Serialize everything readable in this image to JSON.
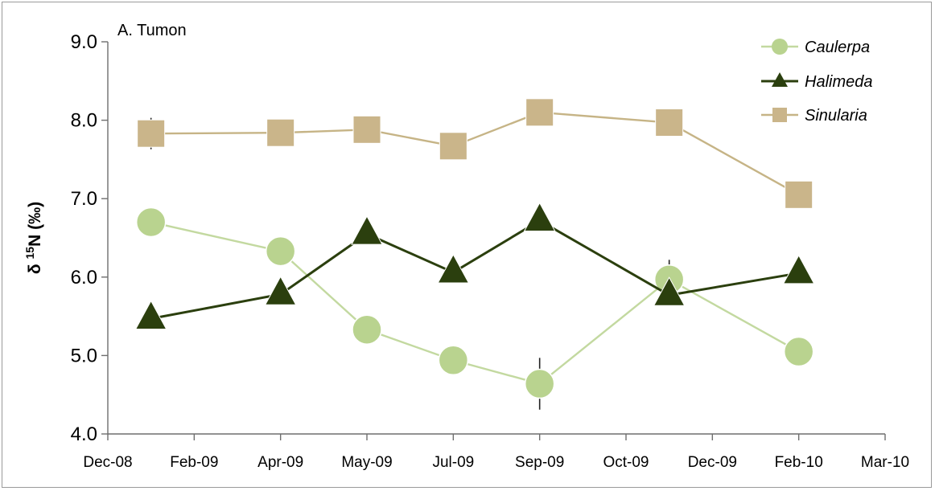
{
  "chart_data": {
    "type": "line",
    "panel_label": "A.  Tumon",
    "ylabel_main": "δ ",
    "ylabel_sup": "15",
    "ylabel_rest": "N (‰)",
    "xlabel": "",
    "ylim": [
      4.0,
      9.0
    ],
    "yticks": [
      "4.0",
      "5.0",
      "6.0",
      "7.0",
      "8.0",
      "9.0"
    ],
    "xtick_labels": [
      "Dec-08",
      "Feb-09",
      "Apr-09",
      "May-09",
      "Jul-09",
      "Sep-09",
      "Oct-09",
      "Dec-09",
      "Feb-10",
      "Mar-10"
    ],
    "x": [
      "Jan-09",
      "Apr-09",
      "May-09",
      "Jul-09",
      "Sep-09",
      "Nov-09",
      "Feb-10"
    ],
    "legend_position": "top-right",
    "grid": false,
    "series": [
      {
        "name": "Caulerpa",
        "marker": "circle",
        "color": "#b9d38f",
        "line_color": "#c3d9a0",
        "values": [
          6.7,
          6.33,
          5.33,
          4.94,
          4.64,
          5.97,
          5.05
        ],
        "errors": [
          0,
          0,
          0,
          0,
          0.33,
          0.25,
          0
        ]
      },
      {
        "name": "Halimeda",
        "marker": "triangle",
        "color": "#2b3f0e",
        "line_color": "#2b3f0e",
        "values": [
          5.47,
          5.78,
          6.55,
          6.06,
          6.72,
          5.77,
          6.05
        ],
        "errors": [
          0,
          0,
          0,
          0,
          0,
          0,
          0
        ]
      },
      {
        "name": "Sinularia",
        "marker": "square",
        "color": "#cab58a",
        "line_color": "#c6b486",
        "values": [
          7.83,
          7.84,
          7.88,
          7.67,
          8.1,
          7.97,
          7.05
        ],
        "errors": [
          0.2,
          0.17,
          0,
          0,
          0,
          0,
          0
        ]
      }
    ]
  }
}
